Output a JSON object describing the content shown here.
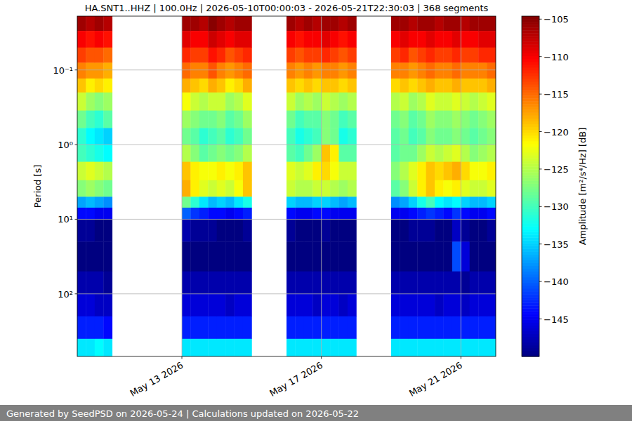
{
  "chart_data": {
    "type": "heatmap",
    "title": "HA.SNT1..HHZ | 100.0Hz | 2026-05-10T00:00:03 - 2026-05-21T22:30:03 | 368 segments",
    "y_label": "Period [s]",
    "annotations": [
      "Generated by SeedPSD on 2026-05-24 | Calculations updated on 2026-05-22"
    ],
    "log": "y",
    "grid": true,
    "xlim": [
      "2026-05-10",
      "2026-05-22"
    ],
    "xticks": [
      {
        "value": "2026-05-13",
        "label": "May 13 2026"
      },
      {
        "value": "2026-05-17",
        "label": "May 17 2026"
      },
      {
        "value": "2026-05-21",
        "label": "May 21 2026"
      }
    ],
    "ylim": [
      690,
      0.019
    ],
    "yticks": [
      {
        "value": 0.1,
        "label": "10⁻¹"
      },
      {
        "value": 1,
        "label": "10⁰"
      },
      {
        "value": 10,
        "label": "10¹"
      },
      {
        "value": 100,
        "label": "10²"
      }
    ],
    "x_edges": [
      "2026-05-10T00:00",
      "2026-05-10T06:00",
      "2026-05-10T12:00",
      "2026-05-10T18:00",
      "2026-05-11T00:00",
      "2026-05-11T06:00",
      "2026-05-11T12:00",
      "2026-05-11T18:00",
      "2026-05-12T00:00",
      "2026-05-12T06:00",
      "2026-05-12T12:00",
      "2026-05-12T18:00",
      "2026-05-13T00:00",
      "2026-05-13T06:00",
      "2026-05-13T12:00",
      "2026-05-13T18:00",
      "2026-05-14T00:00",
      "2026-05-14T06:00",
      "2026-05-14T12:00",
      "2026-05-14T18:00",
      "2026-05-15T00:00",
      "2026-05-15T06:00",
      "2026-05-15T12:00",
      "2026-05-15T18:00",
      "2026-05-16T00:00",
      "2026-05-16T06:00",
      "2026-05-16T12:00",
      "2026-05-16T18:00",
      "2026-05-17T00:00",
      "2026-05-17T06:00",
      "2026-05-17T12:00",
      "2026-05-17T18:00",
      "2026-05-18T00:00",
      "2026-05-18T06:00",
      "2026-05-18T12:00",
      "2026-05-18T18:00",
      "2026-05-19T00:00",
      "2026-05-19T06:00",
      "2026-05-19T12:00",
      "2026-05-19T18:00",
      "2026-05-20T00:00",
      "2026-05-20T06:00",
      "2026-05-20T12:00",
      "2026-05-20T18:00",
      "2026-05-21T00:00",
      "2026-05-21T06:00",
      "2026-05-21T12:00",
      "2026-05-21T18:00",
      "2026-05-22T00:00"
    ],
    "y_edges": [
      0.019,
      0.03,
      0.05,
      0.08,
      0.13,
      0.2,
      0.35,
      0.6,
      1,
      1.7,
      3,
      5,
      7,
      10,
      20,
      50,
      100,
      200,
      400,
      690
    ],
    "values": [
      [
        -106,
        -110,
        -113,
        -116,
        -119,
        -124,
        -128,
        -131,
        -130,
        -124,
        -127,
        -137,
        -144,
        -149,
        -150,
        -148,
        -146,
        -143,
        -134
      ],
      [
        -107,
        -111,
        -114,
        -117,
        -121,
        -126,
        -130,
        -133,
        -131,
        -123,
        -126,
        -136,
        -144,
        -149,
        -150,
        -148,
        -146,
        -143,
        -134
      ],
      [
        -106,
        -110,
        -114,
        -117,
        -120,
        -127,
        -131,
        -134,
        -132,
        -124,
        -127,
        -137,
        -145,
        -150,
        -150,
        -148,
        -147,
        -143,
        -133
      ],
      [
        -107,
        -111,
        -115,
        -118,
        -121,
        -126,
        -129,
        -135,
        -133,
        -125,
        -128,
        -138,
        -145,
        -150,
        -150,
        -149,
        -147,
        -144,
        -134
      ],
      null,
      null,
      null,
      null,
      null,
      null,
      null,
      null,
      [
        -106,
        -109,
        -112,
        -115,
        -118,
        -122,
        -126,
        -128,
        -125,
        -119,
        -118,
        -128,
        -140,
        -148,
        -150,
        -148,
        -146,
        -143,
        -134
      ],
      [
        -106,
        -110,
        -113,
        -116,
        -119,
        -124,
        -127,
        -129,
        -127,
        -121,
        -121,
        -131,
        -142,
        -149,
        -150,
        -148,
        -146,
        -143,
        -134
      ],
      [
        -107,
        -110,
        -113,
        -116,
        -120,
        -125,
        -128,
        -131,
        -129,
        -122,
        -123,
        -134,
        -143,
        -149,
        -150,
        -148,
        -146,
        -143,
        -134
      ],
      [
        -105,
        -108,
        -111,
        -114,
        -118,
        -124,
        -128,
        -130,
        -128,
        -122,
        -124,
        -136,
        -144,
        -149,
        -150,
        -148,
        -146,
        -143,
        -134
      ],
      [
        -106,
        -109,
        -112,
        -116,
        -119,
        -124,
        -127,
        -129,
        -127,
        -121,
        -123,
        -135,
        -144,
        -150,
        -150,
        -148,
        -146,
        -143,
        -134
      ],
      [
        -107,
        -110,
        -114,
        -117,
        -121,
        -126,
        -129,
        -131,
        -128,
        -122,
        -124,
        -136,
        -145,
        -150,
        -150,
        -148,
        -147,
        -143,
        -134
      ],
      [
        -106,
        -109,
        -113,
        -116,
        -120,
        -125,
        -128,
        -130,
        -127,
        -121,
        -122,
        -134,
        -144,
        -150,
        -150,
        -148,
        -146,
        -143,
        -134
      ],
      [
        -106,
        -109,
        -112,
        -115,
        -118,
        -123,
        -126,
        -128,
        -125,
        -119,
        -119,
        -132,
        -143,
        -149,
        -150,
        -148,
        -146,
        -143,
        -134
      ],
      null,
      null,
      null,
      null,
      [
        -106,
        -110,
        -113,
        -116,
        -119,
        -124,
        -128,
        -130,
        -129,
        -123,
        -124,
        -135,
        -144,
        -149,
        -150,
        -148,
        -146,
        -143,
        -134
      ],
      [
        -107,
        -111,
        -114,
        -117,
        -120,
        -126,
        -130,
        -132,
        -130,
        -124,
        -125,
        -136,
        -145,
        -150,
        -150,
        -148,
        -146,
        -143,
        -134
      ],
      [
        -106,
        -110,
        -113,
        -116,
        -119,
        -125,
        -129,
        -131,
        -128,
        -123,
        -125,
        -136,
        -145,
        -150,
        -150,
        -148,
        -146,
        -143,
        -134
      ],
      [
        -107,
        -110,
        -113,
        -117,
        -120,
        -126,
        -129,
        -130,
        -126,
        -121,
        -124,
        -135,
        -144,
        -150,
        -150,
        -148,
        -147,
        -143,
        -134
      ],
      [
        -106,
        -109,
        -112,
        -116,
        -119,
        -124,
        -127,
        -127,
        -119,
        -120,
        -124,
        -135,
        -144,
        -149,
        -150,
        -148,
        -146,
        -143,
        -134
      ],
      [
        -106,
        -110,
        -113,
        -116,
        -119,
        -125,
        -128,
        -128,
        -121,
        -122,
        -125,
        -136,
        -145,
        -150,
        -150,
        -148,
        -146,
        -143,
        -134
      ],
      [
        -107,
        -111,
        -114,
        -117,
        -120,
        -126,
        -130,
        -132,
        -129,
        -124,
        -126,
        -137,
        -145,
        -150,
        -150,
        -148,
        -147,
        -143,
        -134
      ],
      [
        -106,
        -110,
        -113,
        -116,
        -119,
        -125,
        -129,
        -131,
        -129,
        -124,
        -125,
        -136,
        -145,
        -150,
        -150,
        -148,
        -146,
        -143,
        -134
      ],
      null,
      null,
      null,
      null,
      [
        -106,
        -110,
        -113,
        -116,
        -120,
        -125,
        -128,
        -129,
        -129,
        -127,
        -129,
        -138,
        -145,
        -150,
        -150,
        -148,
        -146,
        -143,
        -134
      ],
      [
        -106,
        -109,
        -112,
        -116,
        -119,
        -124,
        -127,
        -128,
        -128,
        -125,
        -127,
        -137,
        -145,
        -150,
        -150,
        -148,
        -146,
        -143,
        -134
      ],
      [
        -107,
        -110,
        -114,
        -117,
        -120,
        -126,
        -129,
        -130,
        -128,
        -123,
        -124,
        -135,
        -144,
        -149,
        -150,
        -148,
        -146,
        -143,
        -134
      ],
      [
        -106,
        -110,
        -113,
        -116,
        -119,
        -125,
        -128,
        -129,
        -126,
        -121,
        -121,
        -132,
        -143,
        -149,
        -150,
        -148,
        -146,
        -143,
        -134
      ],
      [
        -106,
        -109,
        -112,
        -115,
        -118,
        -123,
        -126,
        -127,
        -124,
        -119,
        -119,
        -130,
        -142,
        -149,
        -150,
        -148,
        -146,
        -143,
        -134
      ],
      [
        -107,
        -110,
        -113,
        -116,
        -119,
        -124,
        -127,
        -128,
        -125,
        -120,
        -121,
        -133,
        -143,
        -150,
        -150,
        -148,
        -147,
        -143,
        -134
      ],
      [
        -106,
        -110,
        -113,
        -116,
        -119,
        -124,
        -127,
        -128,
        -124,
        -119,
        -122,
        -134,
        -144,
        -150,
        -150,
        -148,
        -146,
        -143,
        -134
      ],
      [
        -106,
        -109,
        -112,
        -115,
        -118,
        -123,
        -126,
        -127,
        -123,
        -118,
        -121,
        -133,
        -142,
        -147,
        -141,
        -148,
        -146,
        -143,
        -134
      ],
      [
        -107,
        -110,
        -113,
        -116,
        -119,
        -124,
        -127,
        -128,
        -125,
        -120,
        -123,
        -135,
        -144,
        -149,
        -146,
        -149,
        -147,
        -143,
        -134
      ],
      [
        -106,
        -110,
        -113,
        -116,
        -119,
        -125,
        -128,
        -129,
        -127,
        -122,
        -124,
        -136,
        -145,
        -150,
        -150,
        -148,
        -146,
        -143,
        -134
      ],
      [
        -106,
        -109,
        -112,
        -116,
        -119,
        -124,
        -127,
        -128,
        -126,
        -122,
        -124,
        -136,
        -145,
        -150,
        -150,
        -148,
        -146,
        -143,
        -134
      ],
      [
        -106,
        -109,
        -112,
        -115,
        -118,
        -123,
        -126,
        -127,
        -125,
        -121,
        -123,
        -135,
        -144,
        -149,
        -150,
        -148,
        -146,
        -143,
        -134
      ]
    ],
    "colorbar": {
      "label": "Amplitude [m²/s⁴/Hz] [dB]",
      "range": [
        -150,
        -104.6
      ],
      "ticks": [
        {
          "value": -105,
          "label": "−105"
        },
        {
          "value": -110,
          "label": "−110"
        },
        {
          "value": -115,
          "label": "−115"
        },
        {
          "value": -120,
          "label": "−120"
        },
        {
          "value": -125,
          "label": "−125"
        },
        {
          "value": -130,
          "label": "−130"
        },
        {
          "value": -135,
          "label": "−135"
        },
        {
          "value": -140,
          "label": "−140"
        },
        {
          "value": -145,
          "label": "−145"
        }
      ]
    }
  }
}
